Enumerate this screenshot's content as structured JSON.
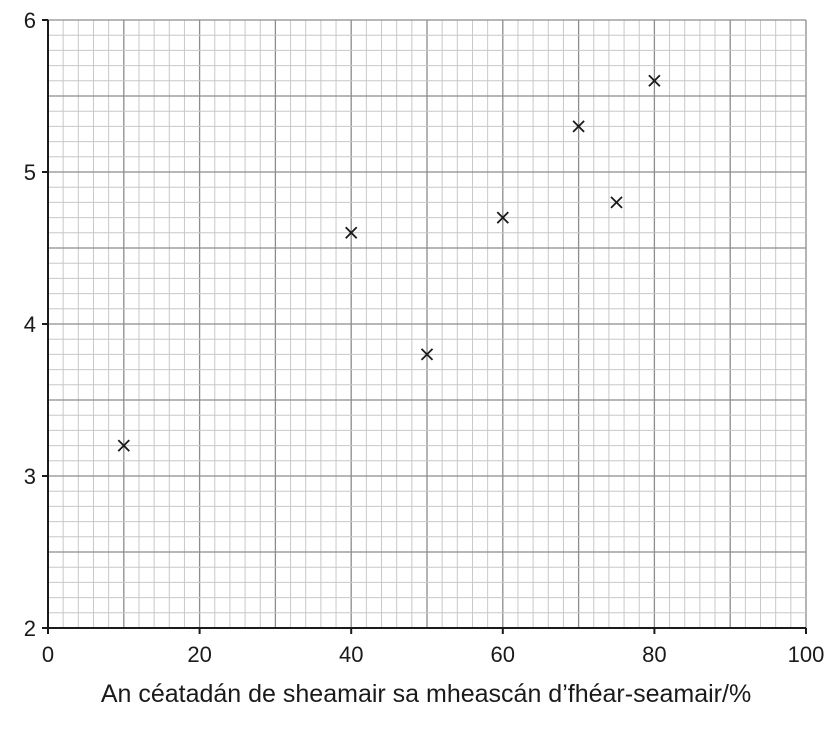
{
  "chart_data": {
    "type": "scatter",
    "title": "",
    "xlabel": "An céatadán de sheamair sa mheascán d’fhéar-seamair/%",
    "ylabel": "",
    "xlim": [
      0,
      100
    ],
    "ylim": [
      2,
      6
    ],
    "x_ticks": [
      0,
      20,
      40,
      60,
      80,
      100
    ],
    "y_ticks": [
      2,
      3,
      4,
      5,
      6
    ],
    "grid": true,
    "marker": "x",
    "points": [
      {
        "x": 10,
        "y": 3.2
      },
      {
        "x": 40,
        "y": 4.6
      },
      {
        "x": 50,
        "y": 3.8
      },
      {
        "x": 60,
        "y": 4.7
      },
      {
        "x": 70,
        "y": 5.3
      },
      {
        "x": 75,
        "y": 4.8
      },
      {
        "x": 80,
        "y": 5.6
      }
    ]
  },
  "colors": {
    "axis": "#1a1a1a",
    "grid_major": "#8c8c8c",
    "grid_medium": "#a6a6a6",
    "grid_minor": "#c8c8c8",
    "marker": "#1a1a1a"
  }
}
